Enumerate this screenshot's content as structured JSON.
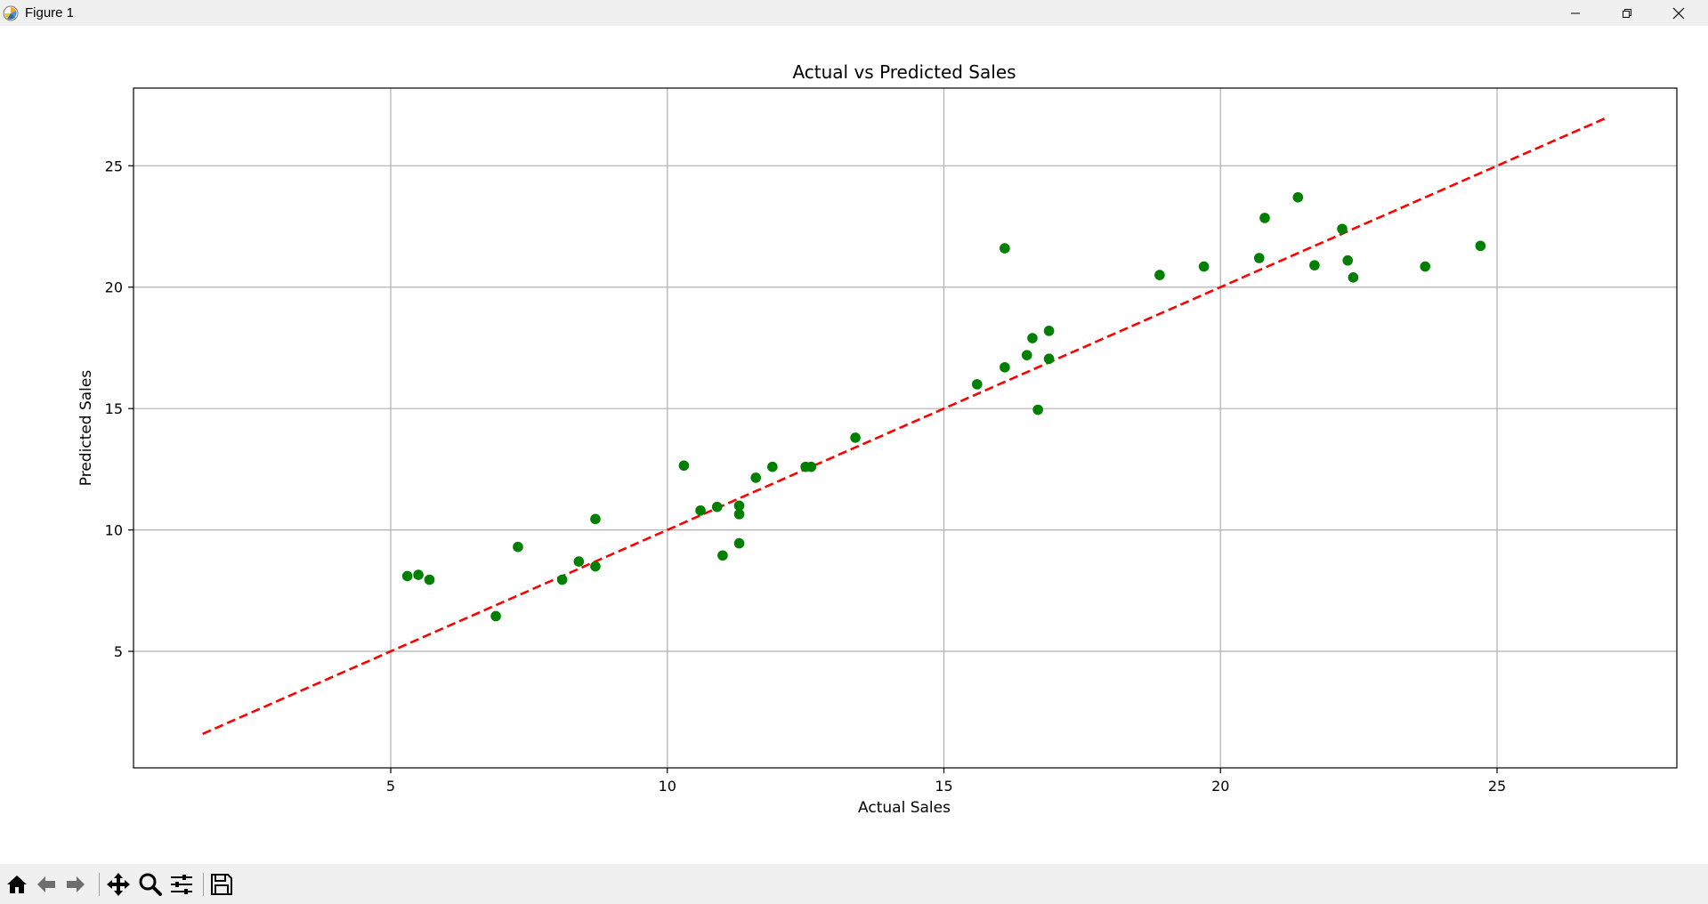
{
  "window": {
    "title": "Figure 1",
    "controls": [
      "minimize",
      "restore",
      "close"
    ]
  },
  "toolbar": {
    "buttons": [
      {
        "icon": "home-icon",
        "name": "home"
      },
      {
        "icon": "back-arrow-icon",
        "name": "back"
      },
      {
        "icon": "forward-arrow-icon",
        "name": "forward"
      },
      {
        "icon": "pan-icon",
        "name": "pan"
      },
      {
        "icon": "zoom-icon",
        "name": "zoom"
      },
      {
        "icon": "configure-subplots-icon",
        "name": "subplots"
      },
      {
        "icon": "save-icon",
        "name": "save"
      }
    ]
  },
  "chart_data": {
    "type": "scatter",
    "title": "Actual vs Predicted Sales",
    "xlabel": "Actual Sales",
    "ylabel": "Predicted Sales",
    "xlim": [
      0.35,
      28.25
    ],
    "ylim": [
      0.2,
      28.2
    ],
    "xticks": [
      5,
      10,
      15,
      20,
      25
    ],
    "yticks": [
      5,
      10,
      15,
      20,
      25
    ],
    "grid": true,
    "series": [
      {
        "type": "scatter",
        "color": "#008000",
        "points": [
          [
            5.3,
            8.1
          ],
          [
            5.5,
            8.15
          ],
          [
            5.7,
            7.95
          ],
          [
            6.9,
            6.45
          ],
          [
            7.3,
            9.3
          ],
          [
            8.1,
            7.95
          ],
          [
            8.4,
            8.7
          ],
          [
            8.7,
            8.5
          ],
          [
            8.7,
            10.45
          ],
          [
            10.3,
            12.65
          ],
          [
            10.6,
            10.8
          ],
          [
            10.9,
            10.95
          ],
          [
            11.0,
            8.95
          ],
          [
            11.3,
            11.0
          ],
          [
            11.3,
            10.65
          ],
          [
            11.3,
            9.45
          ],
          [
            11.6,
            12.15
          ],
          [
            11.9,
            12.6
          ],
          [
            12.5,
            12.6
          ],
          [
            12.6,
            12.6
          ],
          [
            13.4,
            13.8
          ],
          [
            15.6,
            16.0
          ],
          [
            16.1,
            16.7
          ],
          [
            16.1,
            21.6
          ],
          [
            16.5,
            17.2
          ],
          [
            16.6,
            17.9
          ],
          [
            16.7,
            14.95
          ],
          [
            16.9,
            18.2
          ],
          [
            16.9,
            17.05
          ],
          [
            18.9,
            20.5
          ],
          [
            19.7,
            20.85
          ],
          [
            20.7,
            21.2
          ],
          [
            20.8,
            22.85
          ],
          [
            21.4,
            23.7
          ],
          [
            21.7,
            20.9
          ],
          [
            22.2,
            22.4
          ],
          [
            22.3,
            21.1
          ],
          [
            22.4,
            20.4
          ],
          [
            23.7,
            20.85
          ],
          [
            24.7,
            21.7
          ]
        ]
      },
      {
        "type": "line",
        "style": "dashed",
        "color": "#ff0000",
        "points": [
          [
            1.6,
            1.6
          ],
          [
            27.0,
            27.0
          ]
        ]
      }
    ]
  }
}
